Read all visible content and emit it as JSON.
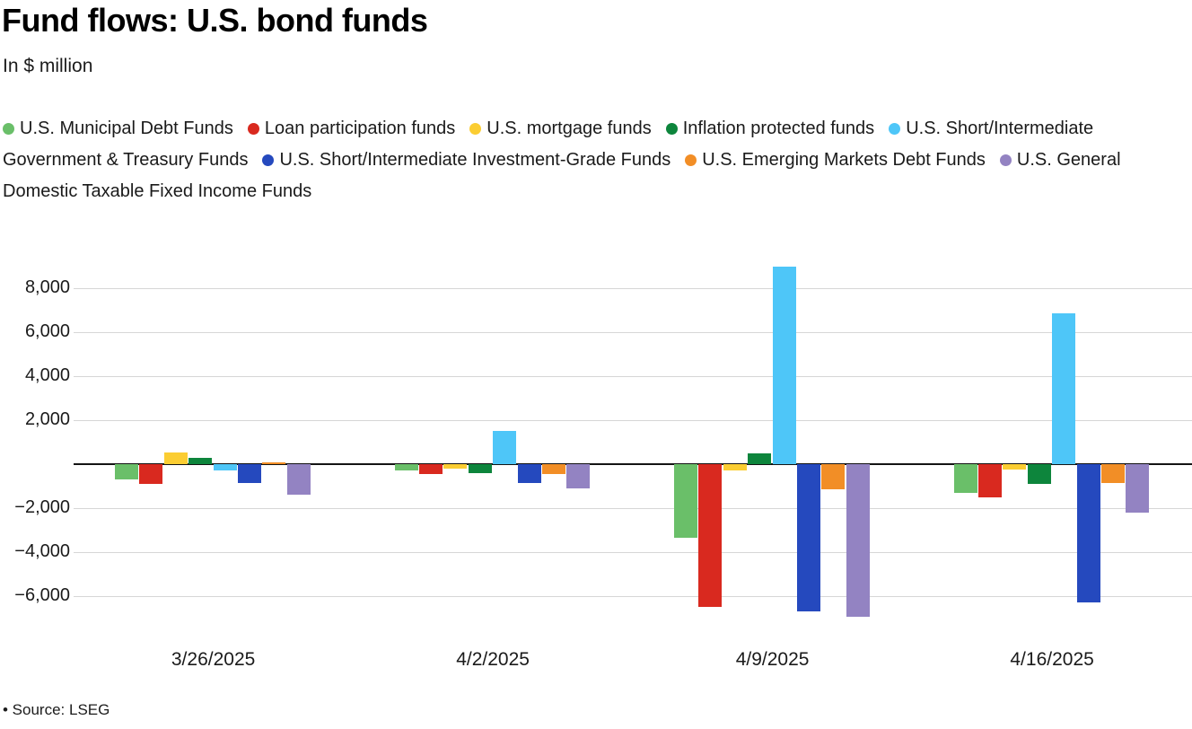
{
  "title": "Fund flows: U.S. bond funds",
  "subtitle": "In $ million",
  "footer": "• Source: LSEG",
  "chart_data": {
    "type": "bar",
    "title": "Fund flows: U.S. bond funds",
    "xlabel": "",
    "ylabel": "In $ million",
    "categories": [
      "3/26/2025",
      "4/2/2025",
      "4/9/2025",
      "4/16/2025"
    ],
    "series": [
      {
        "name": "U.S. Municipal Debt Funds",
        "color": "#6abf69",
        "values": [
          -700,
          -300,
          -3350,
          -1300
        ]
      },
      {
        "name": "Loan participation funds",
        "color": "#d9291f",
        "values": [
          -900,
          -450,
          -6500,
          -1500
        ]
      },
      {
        "name": "U.S. mortgage funds",
        "color": "#fbcd32",
        "values": [
          550,
          -200,
          -270,
          -250
        ]
      },
      {
        "name": "Inflation protected funds",
        "color": "#0d853c",
        "values": [
          270,
          -400,
          480,
          -900
        ]
      },
      {
        "name": "U.S. Short/Intermediate Government & Treasury Funds",
        "color": "#4ec6f8",
        "values": [
          -270,
          1500,
          8980,
          6850
        ]
      },
      {
        "name": "U.S. Short/Intermediate Investment-Grade Funds",
        "color": "#2549be",
        "values": [
          -850,
          -850,
          -6700,
          -6300
        ]
      },
      {
        "name": "U.S. Emerging Markets Debt Funds",
        "color": "#f28e26",
        "values": [
          80,
          -450,
          -1150,
          -850
        ]
      },
      {
        "name": "U.S. General Domestic Taxable Fixed Income Funds",
        "color": "#9383c2",
        "values": [
          -1400,
          -1100,
          -6950,
          -2200
        ]
      }
    ],
    "yticks": [
      8000,
      6000,
      4000,
      2000,
      0,
      -2000,
      -4000,
      -6000
    ],
    "ylim": [
      -7400,
      9400
    ],
    "grid": true,
    "legend_position": "top"
  }
}
